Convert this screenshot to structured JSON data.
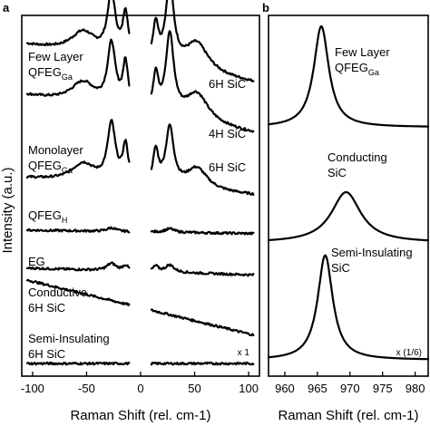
{
  "figure": {
    "panel_a_label": "a",
    "panel_b_label": "b"
  },
  "chart_data": [
    {
      "panel": "a",
      "type": "line",
      "xlabel": "Raman Shift (rel. cm-1)",
      "ylabel": "Intensity (a.u.)",
      "xlim": [
        -110,
        110
      ],
      "xticks": [
        -100,
        -50,
        0,
        50,
        100
      ],
      "scale_note": "x 1",
      "gap_range": [
        -10,
        10
      ],
      "spectra": [
        {
          "label_lines": [
            "Few Layer",
            "QFEG"
          ],
          "label_subscript": "Ga",
          "substrate": "6H SiC",
          "baseline": 0.865,
          "slope": 0.11,
          "peaks": [
            [
              -53,
              0.06,
              14
            ],
            [
              -27,
              0.17,
              4.5
            ],
            [
              -14,
              0.12,
              3
            ],
            [
              27,
              0.22,
              4.5
            ],
            [
              14,
              0.1,
              3
            ],
            [
              52,
              0.08,
              13
            ]
          ]
        },
        {
          "label_lines": [],
          "substrate": "4H SiC",
          "baseline": 0.725,
          "slope": 0.11,
          "peaks": [
            [
              -53,
              0.06,
              14
            ],
            [
              -27,
              0.17,
              4.5
            ],
            [
              -14,
              0.12,
              3
            ],
            [
              27,
              0.22,
              4.5
            ],
            [
              14,
              0.1,
              3
            ],
            [
              52,
              0.08,
              13
            ]
          ]
        },
        {
          "label_lines": [
            "Monolayer",
            "QFEG"
          ],
          "label_subscript": "Ga",
          "substrate": "6H SiC",
          "baseline": 0.525,
          "slope": 0.05,
          "peaks": [
            [
              -53,
              0.05,
              13
            ],
            [
              -27,
              0.16,
              4.5
            ],
            [
              -14,
              0.1,
              3
            ],
            [
              27,
              0.16,
              4.5
            ],
            [
              14,
              0.09,
              3
            ],
            [
              52,
              0.06,
              12
            ]
          ]
        },
        {
          "label_lines": [
            "QFEG"
          ],
          "label_subscript": "H",
          "substrate": "",
          "baseline": 0.4,
          "slope": 0.01,
          "peaks": [
            [
              -27,
              0.01,
              5
            ],
            [
              27,
              0.01,
              5
            ]
          ]
        },
        {
          "label_lines": [
            "EG"
          ],
          "substrate": "",
          "baseline": 0.29,
          "slope": 0.02,
          "peaks": [
            [
              -27,
              0.02,
              5
            ],
            [
              -14,
              0.015,
              3
            ],
            [
              27,
              0.02,
              5
            ],
            [
              14,
              0.015,
              3
            ]
          ]
        },
        {
          "label_lines": [
            "Conductive",
            "6H SiC"
          ],
          "substrate": "",
          "baseline": 0.19,
          "slope": 0.16,
          "peaks": []
        },
        {
          "label_lines": [
            "Semi-Insulating",
            "6H SiC"
          ],
          "substrate": "",
          "baseline": 0.035,
          "slope": 0.0,
          "peaks": []
        }
      ]
    },
    {
      "panel": "b",
      "type": "line",
      "xlabel": "Raman Shift (rel. cm-1)",
      "ylabel": "",
      "xlim": [
        957.5,
        982
      ],
      "xticks": [
        960,
        965,
        970,
        975,
        980
      ],
      "scale_note": "x (1/6)",
      "spectra": [
        {
          "label_lines": [
            "Few Layer",
            "QFEG"
          ],
          "label_subscript": "Ga",
          "center": 965.6,
          "fwhm": 2.8,
          "baseline": 0.69,
          "height": 0.28
        },
        {
          "label_lines": [
            "Conducting",
            "SiC"
          ],
          "center": 969.4,
          "fwhm": 5.5,
          "baseline": 0.37,
          "height": 0.14
        },
        {
          "label_lines": [
            "Semi-Insulating",
            "SiC"
          ],
          "center": 966.2,
          "fwhm": 2.8,
          "baseline": 0.045,
          "height": 0.29
        }
      ]
    }
  ]
}
